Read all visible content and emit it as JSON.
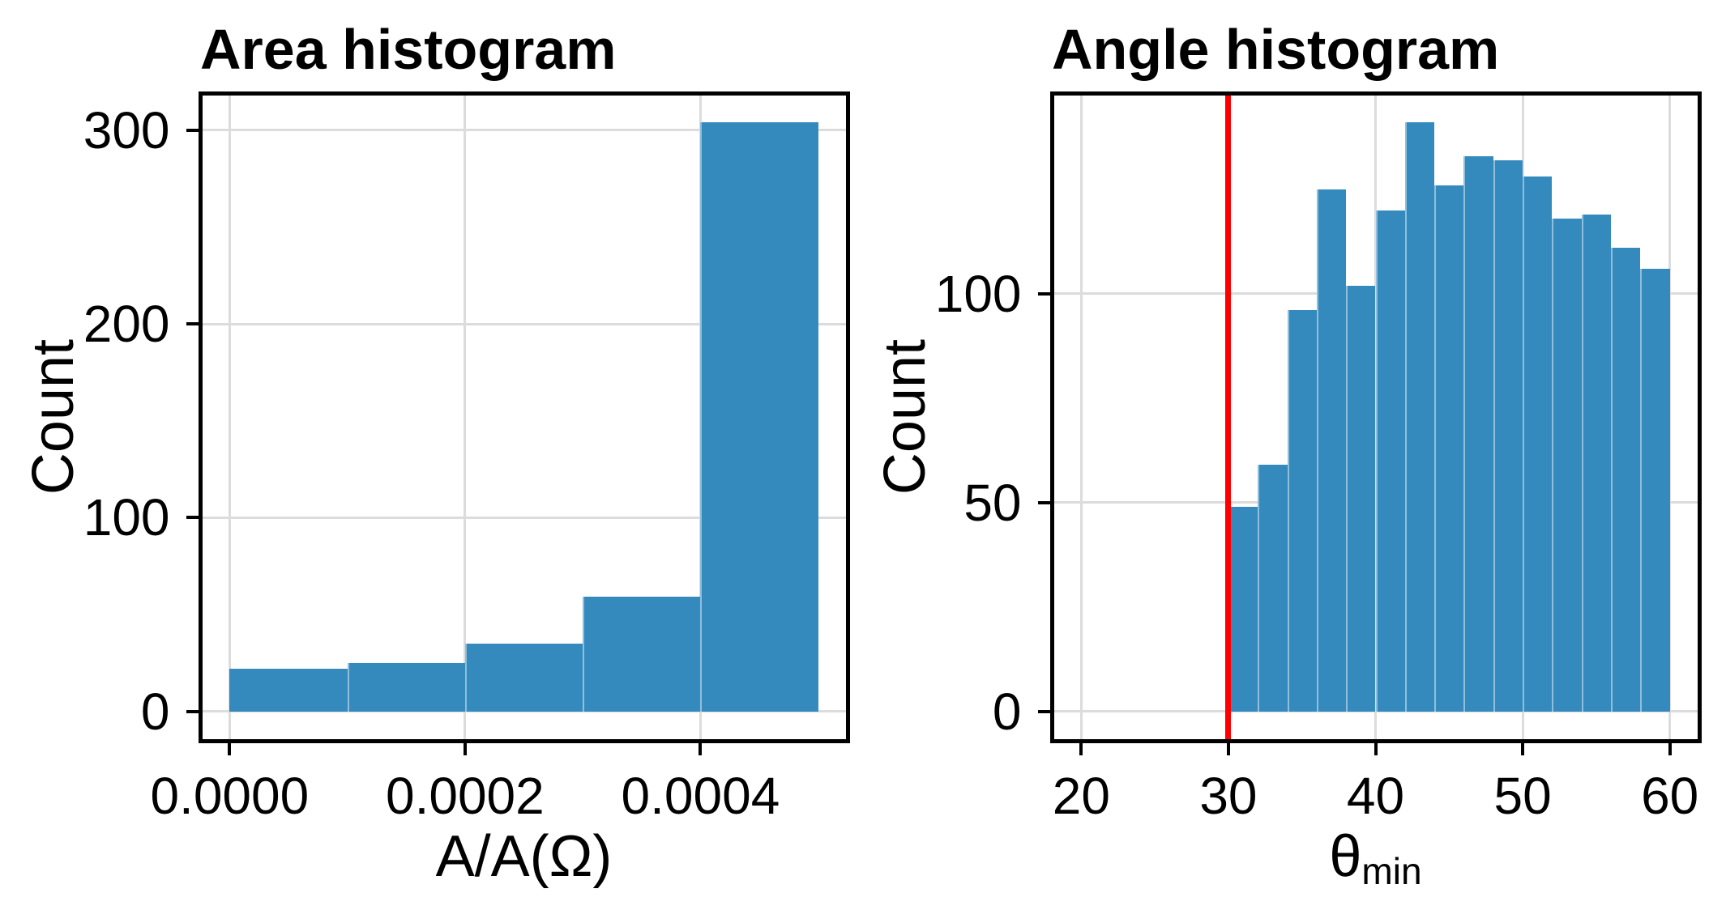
{
  "figure": {
    "background": "#ffffff"
  },
  "colors": {
    "bar_fill": "#348abd",
    "bar_seam": "rgba(255,255,255,0.45)",
    "grid": "#dcdcdc",
    "spine": "#000000",
    "text": "#000000",
    "reference_line": "#ff0000"
  },
  "chart_data": [
    {
      "id": "area",
      "type": "bar",
      "subtype": "histogram",
      "title": "Area histogram",
      "xlabel": "A/A(Ω)",
      "xlabel_sub": "",
      "ylabel": "Count",
      "bins": {
        "start": 0,
        "width": 0.0001
      },
      "counts": [
        22,
        25,
        35,
        59,
        304
      ],
      "bin_edges": [
        0.0,
        0.0001,
        0.0002,
        0.0003,
        0.0004,
        0.0005
      ],
      "xlim": [
        -2.5e-05,
        0.000525
      ],
      "ylim": [
        -15.2,
        319.2
      ],
      "grid": true,
      "legend": null,
      "vline": null,
      "xticks": [
        {
          "v": 0,
          "label": "0.0000"
        },
        {
          "v": 0.0002,
          "label": "0.0002"
        },
        {
          "v": 0.0004,
          "label": "0.0004"
        }
      ],
      "yticks": [
        {
          "v": 0,
          "label": "0"
        },
        {
          "v": 100,
          "label": "100"
        },
        {
          "v": 200,
          "label": "200"
        },
        {
          "v": 300,
          "label": "300"
        }
      ]
    },
    {
      "id": "angle",
      "type": "bar",
      "subtype": "histogram",
      "title": "Angle histogram",
      "xlabel": "θ",
      "xlabel_sub": "min",
      "ylabel": "Count",
      "bins": {
        "start": 30,
        "width": 2
      },
      "counts": [
        49,
        59,
        96,
        125,
        102,
        120,
        141,
        126,
        133,
        132,
        128,
        118,
        119,
        111,
        106
      ],
      "bin_edges": [
        30,
        32,
        34,
        36,
        38,
        40,
        42,
        44,
        46,
        48,
        50,
        52,
        54,
        56,
        58,
        60
      ],
      "xlim": [
        18,
        62
      ],
      "ylim": [
        -7.05,
        148.05
      ],
      "grid": true,
      "legend": null,
      "vline": {
        "x": 30,
        "color": "#ff0000"
      },
      "xticks": [
        {
          "v": 20,
          "label": "20"
        },
        {
          "v": 30,
          "label": "30"
        },
        {
          "v": 40,
          "label": "40"
        },
        {
          "v": 50,
          "label": "50"
        },
        {
          "v": 60,
          "label": "60"
        }
      ],
      "yticks": [
        {
          "v": 0,
          "label": "0"
        },
        {
          "v": 50,
          "label": "50"
        },
        {
          "v": 100,
          "label": "100"
        }
      ]
    }
  ]
}
